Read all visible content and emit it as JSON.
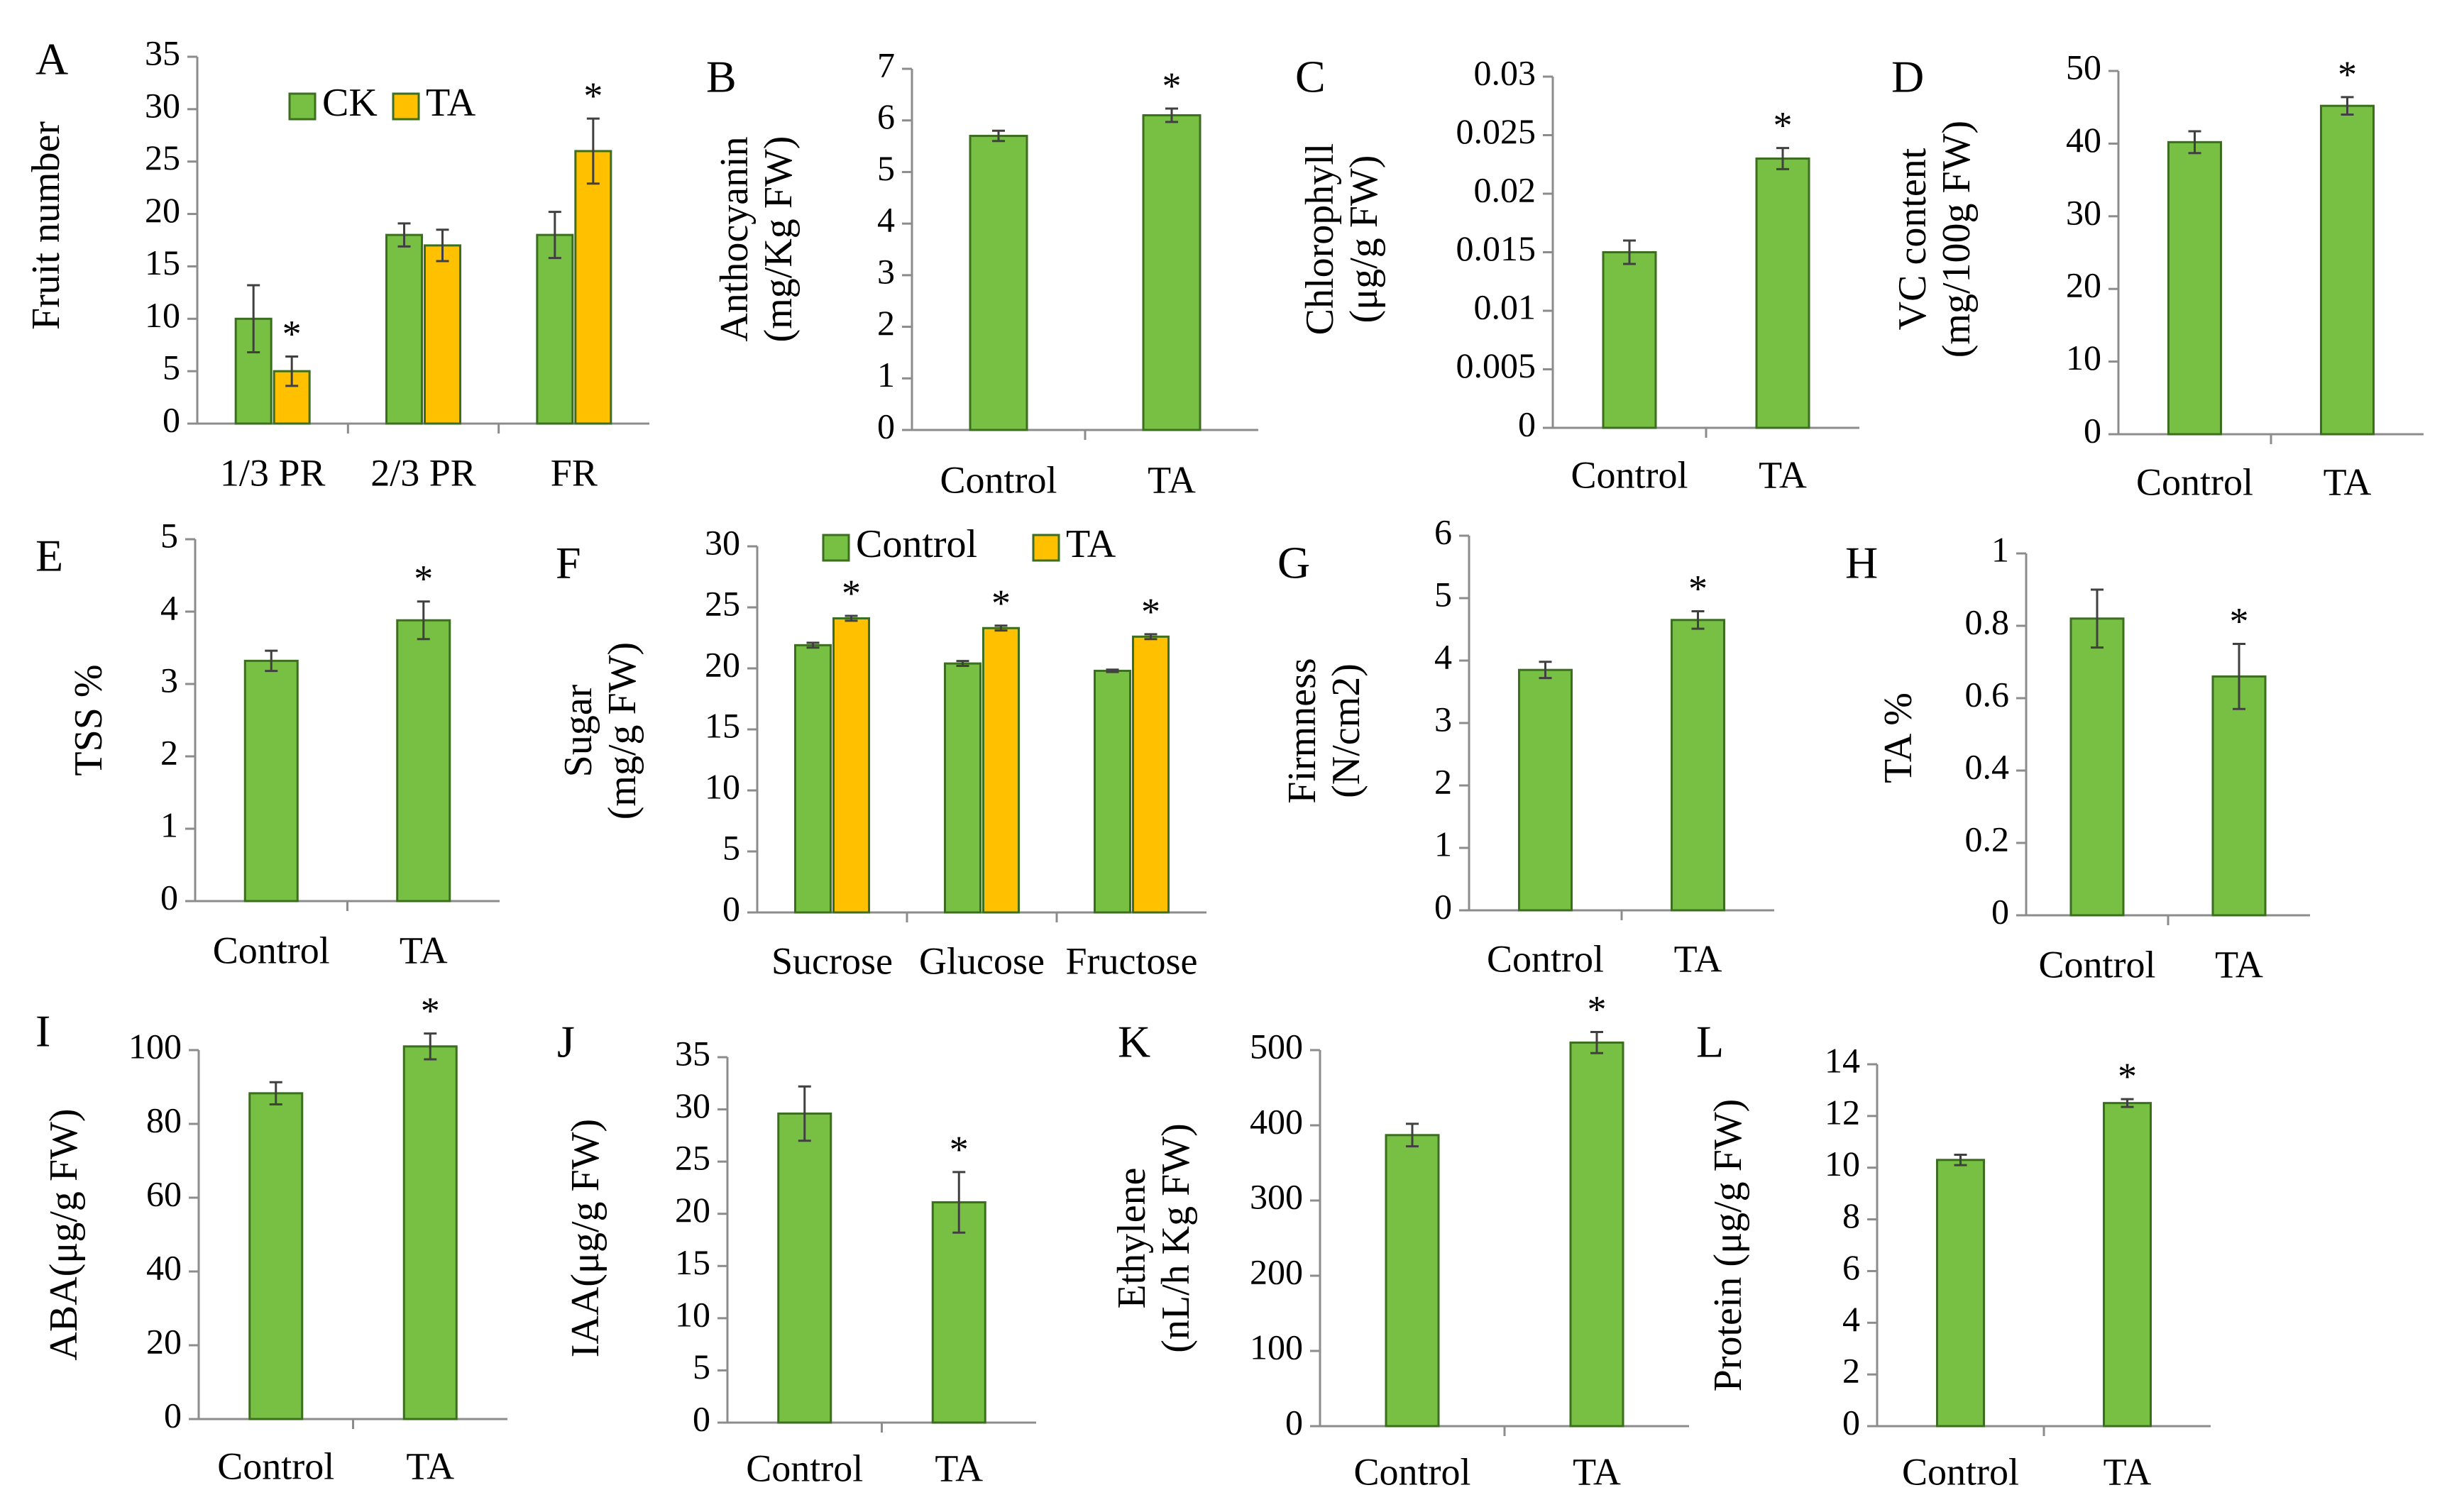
{
  "chart_data": [
    {
      "panel": "A",
      "type": "bar",
      "ylabel_lines": [
        "Fruit number"
      ],
      "ylim": [
        0,
        35
      ],
      "yticks": [
        0,
        5,
        10,
        15,
        20,
        25,
        30,
        35
      ],
      "categories": [
        "1/3 PR",
        "2/3 PR",
        "FR"
      ],
      "series": [
        {
          "name": "CK",
          "color": "#77c043",
          "values": [
            10,
            18,
            18
          ],
          "errors": [
            3.2,
            1.1,
            2.2
          ],
          "sig": [
            "",
            "",
            ""
          ]
        },
        {
          "name": "TA",
          "color": "#ffc000",
          "values": [
            5,
            17,
            26
          ],
          "errors": [
            1.4,
            1.5,
            3.1
          ],
          "sig": [
            "*",
            "",
            "*"
          ]
        }
      ],
      "legend": [
        "CK",
        "TA"
      ]
    },
    {
      "panel": "B",
      "type": "bar",
      "ylabel_lines": [
        "Anthocyanin",
        "(mg/Kg FW)"
      ],
      "ylim": [
        0,
        7
      ],
      "yticks": [
        0,
        1,
        2,
        3,
        4,
        5,
        6,
        7
      ],
      "categories": [
        "Control",
        "TA"
      ],
      "series": [
        {
          "name": "",
          "color": "#77c043",
          "values": [
            5.7,
            6.1
          ],
          "errors": [
            0.1,
            0.13
          ],
          "sig": [
            "",
            "*"
          ]
        }
      ]
    },
    {
      "panel": "C",
      "type": "bar",
      "ylabel_lines": [
        "Chlorophyll",
        "(μg/g FW)"
      ],
      "ylim": [
        0,
        0.03
      ],
      "yticks": [
        "0",
        "0.005",
        "0.01",
        "0.015",
        "0.02",
        "0.025",
        "0.03"
      ],
      "categories": [
        "Control",
        "TA"
      ],
      "series": [
        {
          "name": "",
          "color": "#77c043",
          "values": [
            0.015,
            0.023
          ],
          "errors": [
            0.001,
            0.0009
          ],
          "sig": [
            "",
            "*"
          ]
        }
      ]
    },
    {
      "panel": "D",
      "type": "bar",
      "ylabel_lines": [
        "VC content",
        "(mg/100g FW)"
      ],
      "ylim": [
        0,
        50
      ],
      "yticks": [
        0,
        10,
        20,
        30,
        40,
        50
      ],
      "categories": [
        "Control",
        "TA"
      ],
      "series": [
        {
          "name": "",
          "color": "#77c043",
          "values": [
            40.2,
            45.2
          ],
          "errors": [
            1.5,
            1.2
          ],
          "sig": [
            "",
            "*"
          ]
        }
      ]
    },
    {
      "panel": "E",
      "type": "bar",
      "ylabel_lines": [
        "TSS %"
      ],
      "ylim": [
        0,
        5
      ],
      "yticks": [
        0,
        1,
        2,
        3,
        4,
        5
      ],
      "categories": [
        "Control",
        "TA"
      ],
      "series": [
        {
          "name": "",
          "color": "#77c043",
          "values": [
            3.32,
            3.88
          ],
          "errors": [
            0.14,
            0.26
          ],
          "sig": [
            "",
            "*"
          ]
        }
      ]
    },
    {
      "panel": "F",
      "type": "bar",
      "ylabel_lines": [
        "Sugar",
        "(mg/g FW)"
      ],
      "ylim": [
        0,
        30
      ],
      "yticks": [
        0,
        5,
        10,
        15,
        20,
        25,
        30
      ],
      "categories": [
        "Sucrose",
        "Glucose",
        "Fructose"
      ],
      "series": [
        {
          "name": "Control",
          "color": "#77c043",
          "values": [
            21.9,
            20.4,
            19.8
          ],
          "errors": [
            0.2,
            0.2,
            0.1
          ],
          "sig": [
            "",
            "",
            ""
          ]
        },
        {
          "name": "TA",
          "color": "#ffc000",
          "values": [
            24.1,
            23.3,
            22.6
          ],
          "errors": [
            0.2,
            0.2,
            0.2
          ],
          "sig": [
            "*",
            "*",
            "*"
          ]
        }
      ],
      "legend": [
        "Control",
        "TA"
      ]
    },
    {
      "panel": "G",
      "type": "bar",
      "ylabel_lines": [
        "Firmness",
        "(N/cm2)"
      ],
      "ylim": [
        0,
        6
      ],
      "yticks": [
        0,
        1,
        2,
        3,
        4,
        5,
        6
      ],
      "categories": [
        "Control",
        "TA"
      ],
      "series": [
        {
          "name": "",
          "color": "#77c043",
          "values": [
            3.85,
            4.65
          ],
          "errors": [
            0.13,
            0.14
          ],
          "sig": [
            "",
            "*"
          ]
        }
      ]
    },
    {
      "panel": "H",
      "type": "bar",
      "ylabel_lines": [
        "TA %"
      ],
      "ylim": [
        0,
        1
      ],
      "yticks": [
        "0",
        "0.2",
        "0.4",
        "0.6",
        "0.8",
        "1"
      ],
      "categories": [
        "Control",
        "TA"
      ],
      "series": [
        {
          "name": "",
          "color": "#77c043",
          "values": [
            0.82,
            0.66
          ],
          "errors": [
            0.08,
            0.09
          ],
          "sig": [
            "",
            "*"
          ]
        }
      ]
    },
    {
      "panel": "I",
      "type": "bar",
      "ylabel_lines": [
        "ABA(μg/g FW)"
      ],
      "ylim": [
        0,
        100
      ],
      "yticks": [
        0,
        20,
        40,
        60,
        80,
        100
      ],
      "categories": [
        "Control",
        "TA"
      ],
      "series": [
        {
          "name": "",
          "color": "#77c043",
          "values": [
            88.3,
            101
          ],
          "errors": [
            3,
            3.5
          ],
          "sig": [
            "",
            "*"
          ]
        }
      ]
    },
    {
      "panel": "J",
      "type": "bar",
      "ylabel_lines": [
        "IAA(μg/g FW)"
      ],
      "ylim": [
        0,
        35
      ],
      "yticks": [
        0,
        5,
        10,
        15,
        20,
        25,
        30,
        35
      ],
      "categories": [
        "Control",
        "TA"
      ],
      "series": [
        {
          "name": "",
          "color": "#77c043",
          "values": [
            29.6,
            21.1
          ],
          "errors": [
            2.6,
            2.9
          ],
          "sig": [
            "",
            "*"
          ]
        }
      ]
    },
    {
      "panel": "K",
      "type": "bar",
      "ylabel_lines": [
        "Ethylene",
        "(nL/h Kg FW)"
      ],
      "ylim": [
        0,
        500
      ],
      "yticks": [
        0,
        100,
        200,
        300,
        400,
        500
      ],
      "categories": [
        "Control",
        "TA"
      ],
      "series": [
        {
          "name": "",
          "color": "#77c043",
          "values": [
            387,
            510
          ],
          "errors": [
            15,
            14
          ],
          "sig": [
            "",
            "*"
          ]
        }
      ]
    },
    {
      "panel": "L",
      "type": "bar",
      "ylabel_lines": [
        "Protein (μg/g FW)"
      ],
      "ylim": [
        0,
        14
      ],
      "yticks": [
        0,
        2,
        4,
        6,
        8,
        10,
        12,
        14
      ],
      "categories": [
        "Control",
        "TA"
      ],
      "series": [
        {
          "name": "",
          "color": "#77c043",
          "values": [
            10.3,
            12.5
          ],
          "errors": [
            0.2,
            0.15
          ],
          "sig": [
            "",
            "*"
          ]
        }
      ]
    }
  ]
}
